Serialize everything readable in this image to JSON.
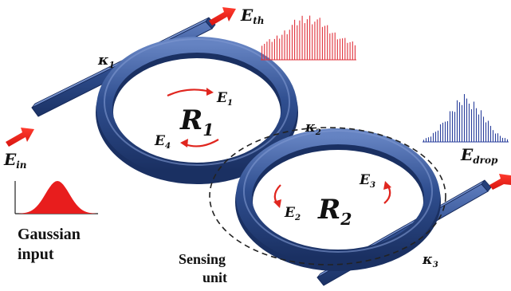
{
  "colors": {
    "waveguide": "#2f4e8f",
    "waveguide_dark": "#1c3466",
    "waveguide_light": "#5a78b8",
    "arrow": "#e8261f",
    "spectrum_red": "#e0303a",
    "spectrum_blue": "#2a3f9c",
    "gaussian": "#e81d1d",
    "text": "#111111"
  },
  "labels": {
    "e_th": {
      "base": "E",
      "sub": "th"
    },
    "e_in": {
      "base": "E",
      "sub": "in"
    },
    "e_drop": {
      "base": "E",
      "sub": "drop"
    },
    "kappa1": {
      "base": "κ",
      "sub": "1"
    },
    "kappa2": {
      "base": "κ",
      "sub": "2"
    },
    "kappa3": {
      "base": "κ",
      "sub": "3"
    },
    "r1": {
      "base": "R",
      "sub": "1"
    },
    "r2": {
      "base": "R",
      "sub": "2"
    },
    "e1": {
      "base": "E",
      "sub": "1"
    },
    "e2": {
      "base": "E",
      "sub": "2"
    },
    "e3": {
      "base": "E",
      "sub": "3"
    },
    "e4": {
      "base": "E",
      "sub": "4"
    }
  },
  "captions": {
    "gaussian_line1": "Gaussian",
    "gaussian_line2": "input",
    "sensing_line1": "Sensing",
    "sensing_line2": "unit"
  },
  "icons": {
    "gaussian": "gaussian-pulse-icon",
    "spectrum_through": "red-comb-spectrum-icon",
    "spectrum_drop": "blue-comb-spectrum-icon"
  }
}
